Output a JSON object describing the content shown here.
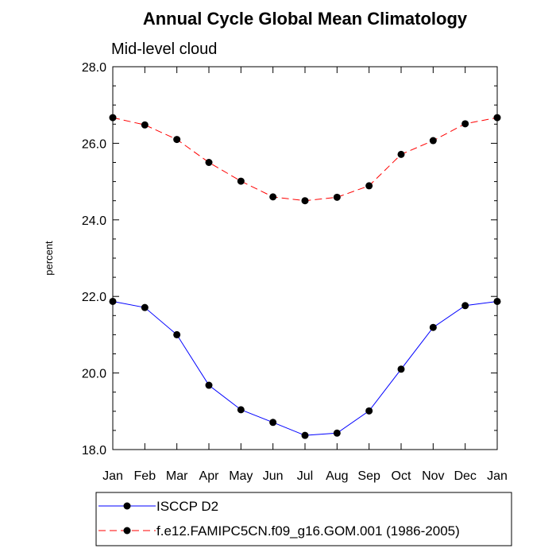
{
  "chart_data": {
    "type": "line",
    "title": "Annual Cycle Global Mean Climatology",
    "subtitle": "Mid-level cloud",
    "xlabel": "",
    "ylabel": "percent",
    "categories": [
      "Jan",
      "Feb",
      "Mar",
      "Apr",
      "May",
      "Jun",
      "Jul",
      "Aug",
      "Sep",
      "Oct",
      "Nov",
      "Dec",
      "Jan"
    ],
    "ylim": [
      18.0,
      28.0
    ],
    "yticks": [
      "18.0",
      "20.0",
      "22.0",
      "24.0",
      "26.0",
      "28.0"
    ],
    "series": [
      {
        "name": "ISCCP D2",
        "color": "#0000ff",
        "dash": "solid",
        "values": [
          21.87,
          21.71,
          21.0,
          19.68,
          19.04,
          18.71,
          18.37,
          18.43,
          19.01,
          20.1,
          21.19,
          21.76,
          21.87
        ]
      },
      {
        "name": "f.e12.FAMIPC5CN.f09_g16.GOM.001 (1986-2005)",
        "color": "#ff0000",
        "dash": "dashed",
        "values": [
          26.67,
          26.48,
          26.1,
          25.5,
          25.01,
          24.6,
          24.5,
          24.59,
          24.89,
          25.71,
          26.07,
          26.51,
          26.67
        ]
      }
    ],
    "legend_position": "bottom"
  }
}
